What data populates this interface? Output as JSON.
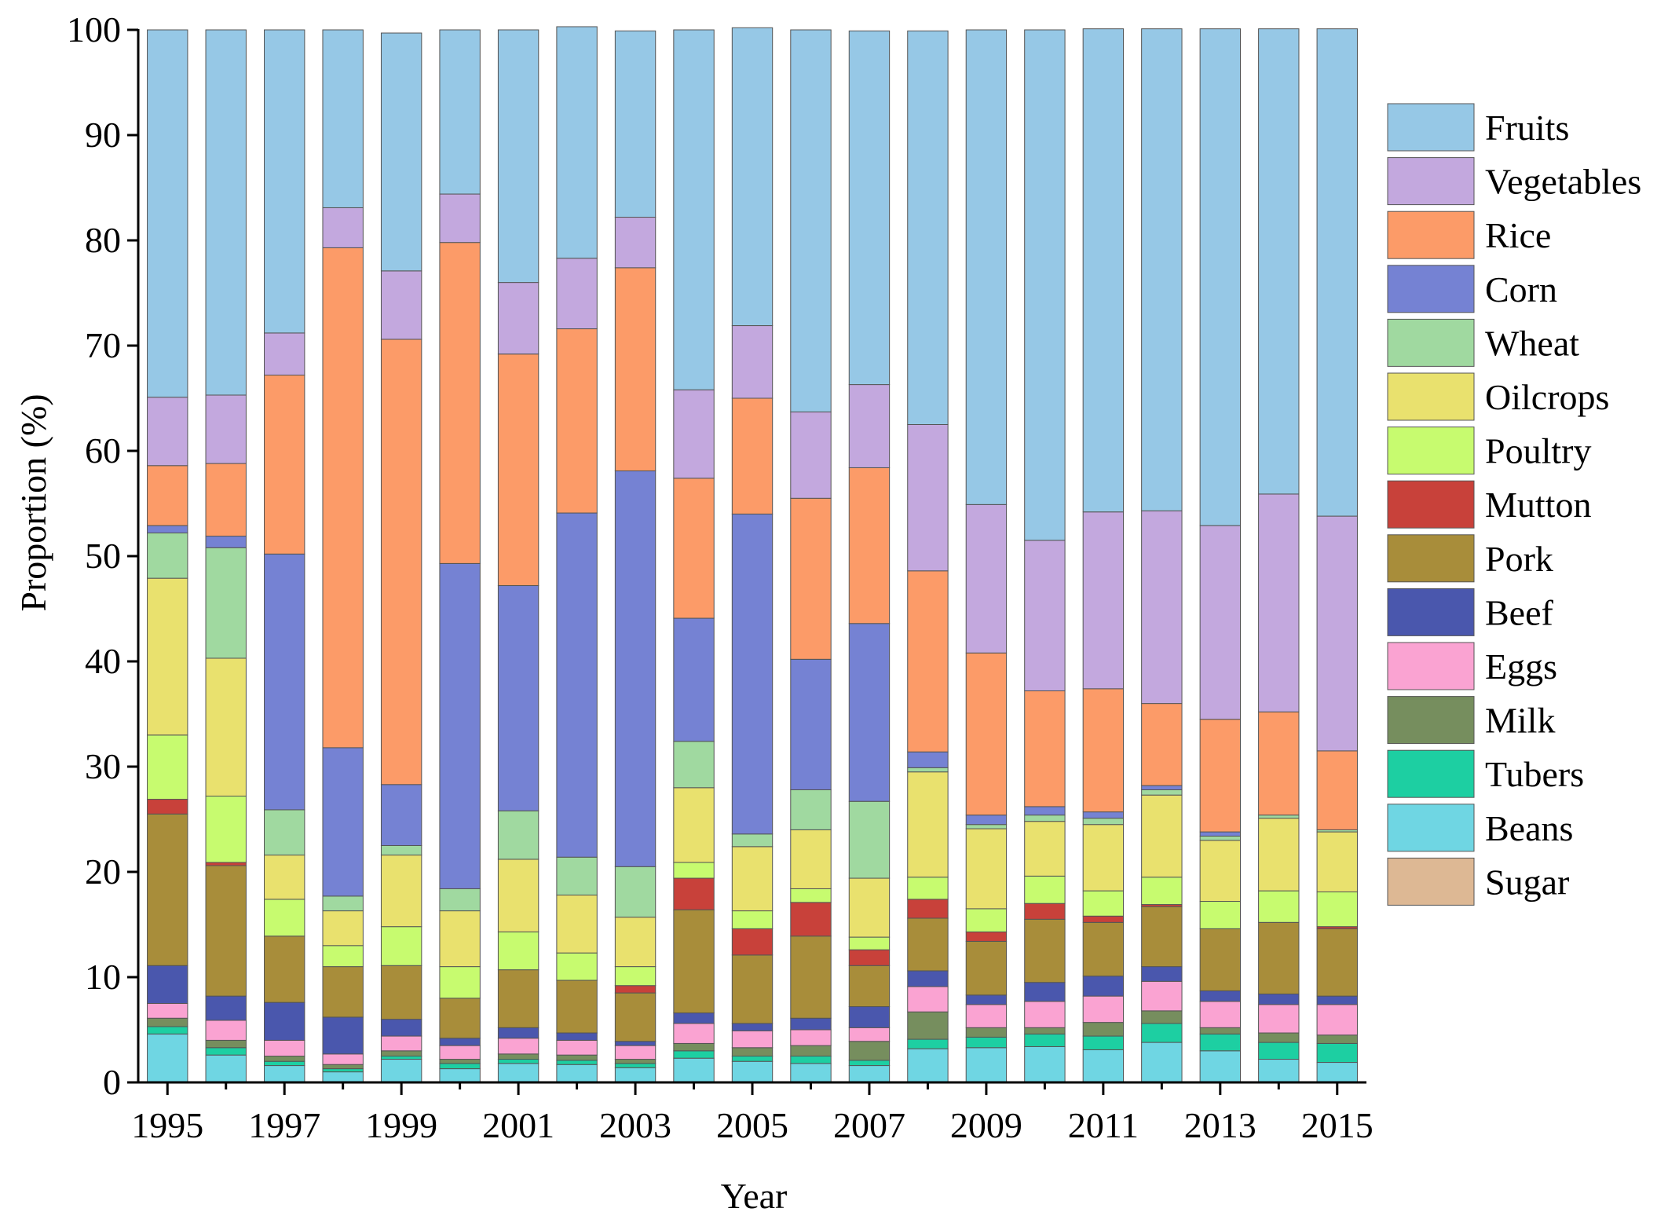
{
  "chart_data": {
    "type": "bar",
    "stacked": true,
    "title": "",
    "xlabel": "Year",
    "ylabel": "Proportion (%)",
    "ylim": [
      0,
      100
    ],
    "yticks": [
      0,
      10,
      20,
      30,
      40,
      50,
      60,
      70,
      80,
      90,
      100
    ],
    "categories": [
      "1995",
      "1996",
      "1997",
      "1998",
      "1999",
      "2000",
      "2001",
      "2002",
      "2003",
      "2004",
      "2005",
      "2006",
      "2007",
      "2008",
      "2009",
      "2010",
      "2011",
      "2012",
      "2013",
      "2014",
      "2015"
    ],
    "xtick_labels": [
      "1995",
      "",
      "1997",
      "",
      "1999",
      "",
      "2001",
      "",
      "2003",
      "",
      "2005",
      "",
      "2007",
      "",
      "2009",
      "",
      "2011",
      "",
      "2013",
      "",
      "2015"
    ],
    "legend_position": "right",
    "series": [
      {
        "name": "Sugar",
        "color": "#DDB894",
        "values": [
          0,
          0,
          0,
          0,
          0,
          0,
          0,
          0,
          0,
          0,
          0,
          0,
          0,
          0,
          0,
          0,
          0,
          0,
          0,
          0,
          0
        ]
      },
      {
        "name": "Beans",
        "color": "#6FD6E3",
        "values": [
          4.6,
          2.6,
          1.6,
          1.0,
          2.2,
          1.3,
          1.8,
          1.7,
          1.4,
          2.3,
          2.0,
          1.8,
          1.6,
          3.2,
          3.3,
          3.4,
          3.1,
          3.8,
          3.0,
          2.2,
          1.9
        ]
      },
      {
        "name": "Tubers",
        "color": "#1DCFA2",
        "values": [
          0.7,
          0.7,
          0.4,
          0.3,
          0.3,
          0.5,
          0.4,
          0.4,
          0.4,
          0.7,
          0.5,
          0.7,
          0.5,
          0.9,
          1.0,
          1.2,
          1.3,
          1.8,
          1.6,
          1.6,
          1.8
        ]
      },
      {
        "name": "Milk",
        "color": "#768E5E",
        "values": [
          0.8,
          0.7,
          0.5,
          0.4,
          0.5,
          0.4,
          0.5,
          0.5,
          0.4,
          0.7,
          0.8,
          1.0,
          1.8,
          2.6,
          0.9,
          0.6,
          1.3,
          1.2,
          0.6,
          0.9,
          0.8
        ]
      },
      {
        "name": "Eggs",
        "color": "#FAA3D2",
        "values": [
          1.4,
          1.9,
          1.5,
          1.0,
          1.4,
          1.3,
          1.5,
          1.4,
          1.3,
          1.9,
          1.6,
          1.5,
          1.3,
          2.4,
          2.2,
          2.5,
          2.5,
          2.8,
          2.5,
          2.7,
          2.9
        ]
      },
      {
        "name": "Beef",
        "color": "#4A57AD",
        "values": [
          3.6,
          2.3,
          3.6,
          3.5,
          1.6,
          0.7,
          1.0,
          0.7,
          0.4,
          1.0,
          0.7,
          1.1,
          2.0,
          1.5,
          0.9,
          1.8,
          1.9,
          1.4,
          1.0,
          1.0,
          0.8
        ]
      },
      {
        "name": "Pork",
        "color": "#A88D3A",
        "values": [
          14.4,
          12.4,
          6.3,
          4.8,
          5.1,
          3.8,
          5.5,
          5.0,
          4.6,
          9.8,
          6.5,
          7.8,
          3.9,
          5.0,
          5.1,
          6.0,
          5.1,
          5.7,
          5.9,
          6.8,
          6.4
        ]
      },
      {
        "name": "Mutton",
        "color": "#C8413A",
        "values": [
          1.4,
          0.3,
          0,
          0,
          0,
          0,
          0,
          0,
          0.7,
          3.0,
          2.5,
          3.2,
          1.5,
          1.8,
          0.9,
          1.5,
          0.6,
          0.2,
          0,
          0,
          0.2
        ]
      },
      {
        "name": "Poultry",
        "color": "#C7FB6F",
        "values": [
          6.1,
          6.3,
          3.5,
          2.0,
          3.7,
          3.0,
          3.6,
          2.6,
          1.8,
          1.5,
          1.7,
          1.3,
          1.2,
          2.1,
          2.2,
          2.6,
          2.4,
          2.6,
          2.6,
          3.0,
          3.3
        ]
      },
      {
        "name": "Oilcrops",
        "color": "#E9E16E",
        "values": [
          14.9,
          13.1,
          4.2,
          3.3,
          6.8,
          5.3,
          6.9,
          5.5,
          4.7,
          7.1,
          6.1,
          5.6,
          5.6,
          10.0,
          7.6,
          5.2,
          6.3,
          7.8,
          5.8,
          6.9,
          5.7
        ]
      },
      {
        "name": "Wheat",
        "color": "#A0D9A0",
        "values": [
          4.3,
          10.5,
          4.3,
          1.4,
          0.9,
          2.1,
          4.6,
          3.6,
          4.8,
          4.4,
          1.2,
          3.8,
          7.3,
          0.4,
          0.4,
          0.6,
          0.6,
          0.5,
          0.4,
          0.3,
          0.2
        ]
      },
      {
        "name": "Corn",
        "color": "#7582D3",
        "values": [
          0.7,
          1.1,
          24.3,
          14.1,
          5.8,
          30.9,
          21.4,
          32.7,
          37.6,
          11.7,
          30.4,
          12.4,
          16.9,
          1.5,
          0.9,
          0.8,
          0.6,
          0.4,
          0.4,
          0,
          0
        ]
      },
      {
        "name": "Rice",
        "color": "#FC9B68",
        "values": [
          5.7,
          6.9,
          17.0,
          47.5,
          42.3,
          30.5,
          22.0,
          17.5,
          19.3,
          13.3,
          11.0,
          15.3,
          14.8,
          17.2,
          15.4,
          11.0,
          11.7,
          7.8,
          10.7,
          9.8,
          7.5
        ]
      },
      {
        "name": "Vegetables",
        "color": "#C3A8DE",
        "values": [
          6.5,
          6.5,
          4.0,
          3.8,
          6.5,
          4.6,
          6.8,
          6.7,
          4.8,
          8.4,
          6.9,
          8.2,
          7.9,
          13.9,
          14.1,
          14.3,
          16.8,
          18.3,
          18.4,
          20.7,
          22.3
        ]
      },
      {
        "name": "Fruits",
        "color": "#96C8E6",
        "values": [
          34.9,
          34.7,
          28.8,
          16.9,
          22.6,
          15.6,
          24.0,
          22.0,
          17.7,
          34.2,
          28.3,
          36.3,
          33.6,
          37.4,
          45.1,
          48.5,
          45.9,
          45.8,
          47.2,
          44.2,
          46.3
        ]
      }
    ],
    "legend_order": [
      "Fruits",
      "Vegetables",
      "Rice",
      "Corn",
      "Wheat",
      "Oilcrops",
      "Poultry",
      "Mutton",
      "Pork",
      "Beef",
      "Eggs",
      "Milk",
      "Tubers",
      "Beans",
      "Sugar"
    ]
  }
}
